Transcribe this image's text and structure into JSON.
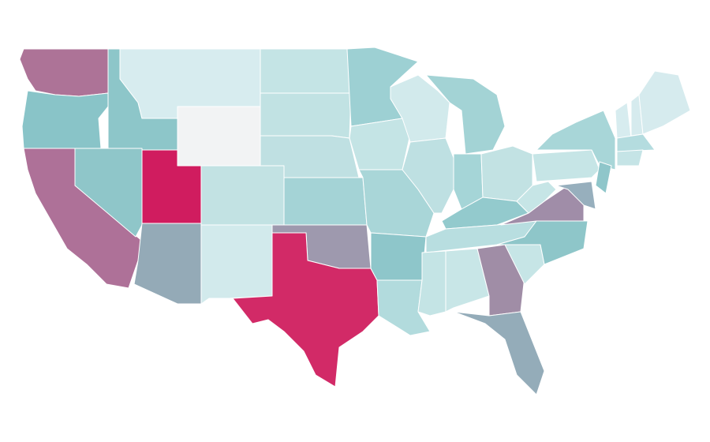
{
  "map": {
    "background": "#ffffff",
    "border_color": "#ffffff",
    "regions": [
      {
        "color": "#ad7397"
      },
      {
        "color": "#89c4c8"
      },
      {
        "color": "#ae7198"
      },
      {
        "color": "#8dc6c9"
      },
      {
        "color": "#8fc6c9"
      },
      {
        "color": "#d7ecef"
      },
      {
        "color": "#f2f3f4"
      },
      {
        "color": "#d01c5f"
      },
      {
        "color": "#94aab7"
      },
      {
        "color": "#c2e2e3"
      },
      {
        "color": "#d2eaec"
      },
      {
        "color": "#c4e4e5"
      },
      {
        "color": "#c1e2e3"
      },
      {
        "color": "#bfe0e2"
      },
      {
        "color": "#a4d3d6"
      },
      {
        "color": "#9e99ae"
      },
      {
        "color": "#d22a67"
      },
      {
        "color": "#9dd0d3"
      },
      {
        "color": "#c4e4e5"
      },
      {
        "color": "#a9d6d8"
      },
      {
        "color": "#8ec6ca"
      },
      {
        "color": "#b2dbdd"
      },
      {
        "color": "#d2eaec"
      },
      {
        "color": "#a3d3d5"
      },
      {
        "color": "#bee0e2"
      },
      {
        "color": "#a5d5d7"
      },
      {
        "color": "#c2e2e3"
      },
      {
        "color": "#93cacd"
      },
      {
        "color": "#b8dee0"
      },
      {
        "color": "#c4e4e5"
      },
      {
        "color": "#c8e6e7"
      },
      {
        "color": "#a08da6"
      },
      {
        "color": "#94acb9"
      },
      {
        "color": "#c6e5e6"
      },
      {
        "color": "#8ec6c9"
      },
      {
        "color": "#a08da8"
      },
      {
        "color": "#c6e5e6"
      },
      {
        "color": "#c6e5e6"
      },
      {
        "color": "#a8d6d8"
      },
      {
        "color": "#8fc6ca"
      },
      {
        "color": "#97afbd"
      },
      {
        "color": "#d7ecef"
      },
      {
        "color": "#d6ebee"
      },
      {
        "color": "#d6ebee"
      },
      {
        "color": "#b4dcdf"
      },
      {
        "color": "#c5e4e6"
      }
    ]
  }
}
